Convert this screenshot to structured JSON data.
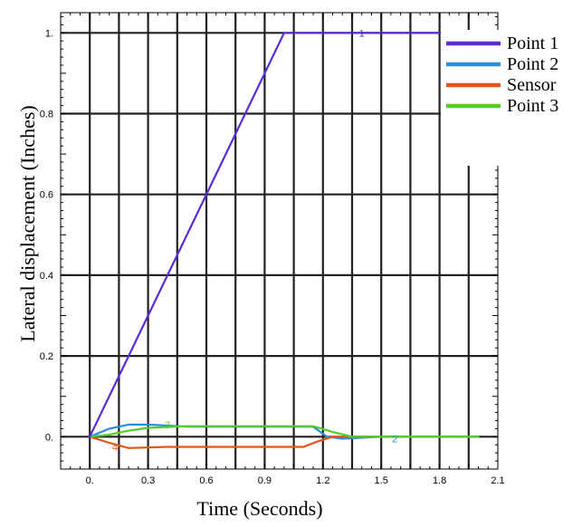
{
  "chart_data": {
    "type": "line",
    "xlabel": "Time (Seconds)",
    "ylabel": "Lateral displacement (Inches)",
    "xlim": [
      -0.15,
      2.1
    ],
    "ylim": [
      -0.08,
      1.05
    ],
    "grid": true,
    "legend_placement": "top-right",
    "x_ticks": [
      0.0,
      0.3,
      0.6,
      0.9,
      1.2,
      1.5,
      1.8,
      2.1
    ],
    "x_tick_labels": [
      "0.",
      "0.3",
      "0.6",
      "0.9",
      "1.2",
      "1.5",
      "1.8",
      "2.1"
    ],
    "y_ticks": [
      0.0,
      0.2,
      0.4,
      0.6,
      0.8,
      1.0
    ],
    "y_tick_labels": [
      "0.",
      "0.2",
      "0.4",
      "0.6",
      "0.8",
      "1."
    ],
    "series": [
      {
        "name": "Point 1",
        "label": "1",
        "label_at": [
          1.4,
          1.0
        ],
        "color": "#5a2bd8",
        "x": [
          0.0,
          1.0,
          2.0
        ],
        "y": [
          0.0,
          1.0,
          1.0
        ]
      },
      {
        "name": "Point 2",
        "label": "2",
        "label_at": [
          1.57,
          -0.005
        ],
        "color": "#2b8de0",
        "x": [
          0.0,
          0.1,
          0.2,
          0.3,
          0.5,
          0.9,
          1.15,
          1.22,
          1.3,
          1.5,
          2.0
        ],
        "y": [
          0.0,
          0.02,
          0.03,
          0.03,
          0.025,
          0.025,
          0.025,
          0.0,
          -0.005,
          0.0,
          0.0
        ]
      },
      {
        "name": "Sensor",
        "label": "4",
        "label_at": [
          0.13,
          -0.025
        ],
        "color": "#e0561c",
        "x": [
          0.0,
          0.1,
          0.2,
          0.4,
          0.7,
          1.0,
          1.1,
          1.17,
          1.25,
          1.35,
          2.0
        ],
        "y": [
          0.0,
          -0.015,
          -0.028,
          -0.025,
          -0.025,
          -0.025,
          -0.025,
          -0.012,
          0.0,
          0.0,
          0.0
        ]
      },
      {
        "name": "Point 3",
        "label": "3",
        "label_at": [
          0.4,
          0.03
        ],
        "color": "#55cc28",
        "x": [
          0.0,
          0.1,
          0.2,
          0.3,
          0.5,
          0.9,
          1.15,
          1.25,
          1.35,
          1.5,
          2.0
        ],
        "y": [
          0.0,
          0.005,
          0.015,
          0.022,
          0.026,
          0.026,
          0.026,
          0.012,
          0.0,
          0.0,
          0.0
        ]
      }
    ],
    "legend_order": [
      "Point 1",
      "Point 2",
      "Sensor",
      "Point 3"
    ]
  }
}
